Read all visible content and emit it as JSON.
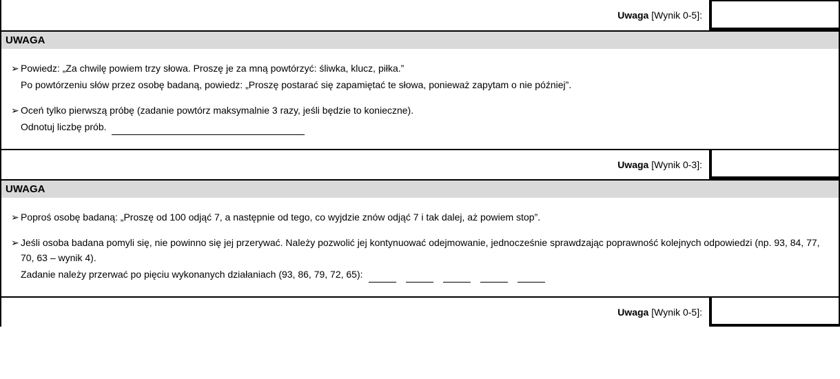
{
  "score1": {
    "label_bold": "Uwaga",
    "label_range": " [Wynik 0-5]:"
  },
  "section1": {
    "header": "UWAGA",
    "line1": "Powiedz: „Za chwilę powiem trzy słowa. Proszę je za mną powtórzyć: śliwka, klucz, piłka.”",
    "line2": "Po powtórzeniu słów przez osobę badaną, powiedz: „Proszę postarać się zapamiętać te słowa, ponieważ zapytam o nie później”.",
    "line3": "Oceń tylko pierwszą próbę (zadanie powtórz maksymalnie 3 razy, jeśli będzie to konieczne).",
    "line4": "Odnotuj liczbę prób."
  },
  "score2": {
    "label_bold": "Uwaga",
    "label_range": " [Wynik 0-3]:"
  },
  "section2": {
    "header": "UWAGA",
    "line1": "Poproś osobę badaną: „Proszę od 100 odjąć 7, a następnie od tego, co wyjdzie znów odjąć 7 i tak dalej, aż powiem stop”.",
    "line2": "Jeśli osoba badana pomyli się, nie powinno się jej przerywać. Należy pozwolić jej kontynuować odejmowanie, jednocześnie sprawdzając poprawność kolejnych odpowiedzi (np. 93, 84, 77, 70, 63 – wynik 4).",
    "line3": "Zadanie należy przerwać po pięciu wykonanych działaniach (93, 86, 79, 72, 65):"
  },
  "score3": {
    "label_bold": "Uwaga",
    "label_range": " [Wynik 0-5]:"
  }
}
